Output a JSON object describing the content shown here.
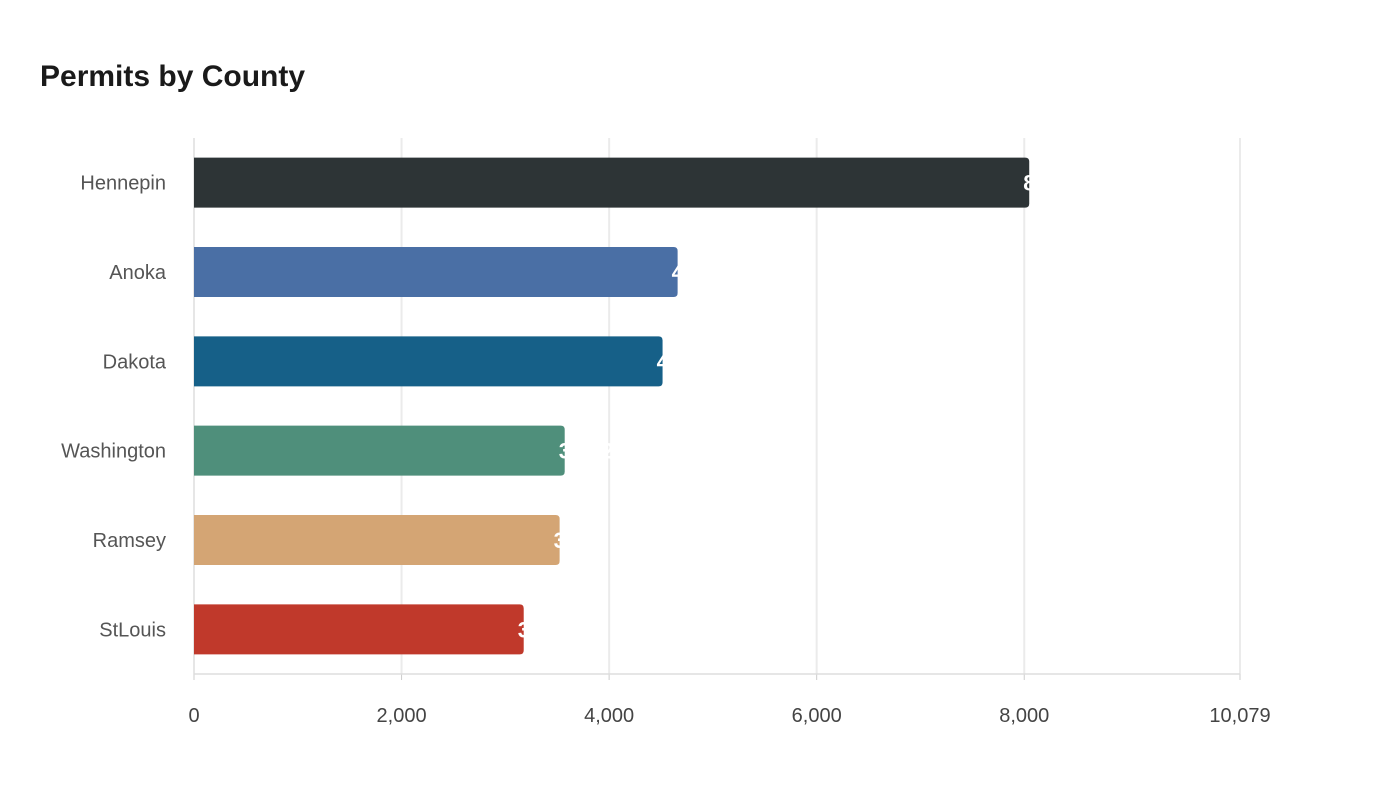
{
  "chart_data": {
    "type": "bar",
    "orientation": "horizontal",
    "title": "Permits by County",
    "xlabel": "",
    "ylabel": "",
    "categories": [
      "Hennepin",
      "Anoka",
      "Dakota",
      "Washington",
      "Ramsey",
      "StLouis"
    ],
    "values": [
      8048,
      4660,
      4515,
      3572,
      3523,
      3177
    ],
    "colors": [
      "#2d3436",
      "#4a6fa5",
      "#166088",
      "#4f8f7b",
      "#d4a574",
      "#c0392b"
    ],
    "xlim": [
      0,
      10079
    ],
    "xticks": [
      0,
      2000,
      4000,
      6000,
      8000,
      10079
    ],
    "xtick_labels": [
      "0",
      "2,000",
      "4,000",
      "6,000",
      "8,000",
      "10,079"
    ],
    "grid": true,
    "legend": "none"
  }
}
